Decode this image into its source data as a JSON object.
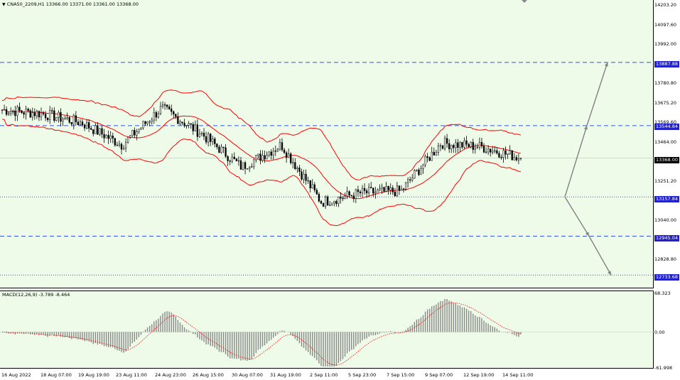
{
  "header": {
    "symbol_info": "CNA50_2209,H1  13366.00 13371.00 13361.00 13368.00",
    "macd_info": "MACD(12,26,9) -3.789 -8.464"
  },
  "price_scale": [
    "14203.20",
    "14097.60",
    "13992.00",
    "13886.40",
    "13780.80",
    "13675.20",
    "13569.60",
    "13464.00",
    "13251.20",
    "13040.00",
    "12828.80",
    "12723.20"
  ],
  "price_tags": {
    "p13887": "13887.88",
    "p13544": "13544.84",
    "current": "13368.00",
    "p13157": "13157.84",
    "p12945": "12945.04",
    "p12733": "12733.68"
  },
  "macd_scale": [
    "68.323",
    "0.00",
    "-61.998"
  ],
  "time_axis": [
    "16 Aug 2022",
    "18 Aug 07:00",
    "19 Aug 19:00",
    "23 Aug 11:00",
    "24 Aug 23:00",
    "26 Aug 15:00",
    "30 Aug 07:00",
    "31 Aug 19:00",
    "2 Sep 11:00",
    "5 Sep 23:00",
    "7 Sep 15:00",
    "9 Sep 07:00",
    "12 Sep 19:00",
    "14 Sep 11:00"
  ],
  "colors": {
    "background": "#eefbe9",
    "bollinger": "#ff0000",
    "level_line": "#3355dd",
    "tag_bg": "#2222cc",
    "arrow": "#808080"
  },
  "chart_data": {
    "type": "candlestick",
    "title": "CNA50_2209,H1",
    "ohlc_last": {
      "open": 13366.0,
      "high": 13371.0,
      "low": 13361.0,
      "close": 13368.0
    },
    "price_range": [
      12723.2,
      14203.2
    ],
    "horizontal_levels": [
      13887.88,
      13544.84,
      13157.84,
      12945.04,
      12733.68
    ],
    "close_path": [
      [
        "16 Aug 2022",
        13630
      ],
      [
        "18 Aug 07:00",
        13610
      ],
      [
        "19 Aug 19:00",
        13560
      ],
      [
        "23 Aug 11:00",
        13440
      ],
      [
        "24 Aug 23:00",
        13640
      ],
      [
        "26 Aug 15:00",
        13500
      ],
      [
        "30 Aug 07:00",
        13320
      ],
      [
        "31 Aug 19:00",
        13440
      ],
      [
        "2 Sep 11:00",
        13130
      ],
      [
        "5 Sep 23:00",
        13180
      ],
      [
        "7 Sep 15:00",
        13190
      ],
      [
        "9 Sep 07:00",
        13450
      ],
      [
        "12 Sep 19:00",
        13430
      ],
      [
        "14 Sep 11:00",
        13368
      ]
    ],
    "projection": {
      "from": 13157.84,
      "up_targets": [
        13544.84,
        13887.88
      ],
      "down_targets": [
        12945.04,
        12733.68
      ]
    },
    "macd": {
      "params": "12,26,9",
      "main": -3.789,
      "signal": -8.464,
      "range": [
        -61.998,
        68.323
      ]
    }
  }
}
